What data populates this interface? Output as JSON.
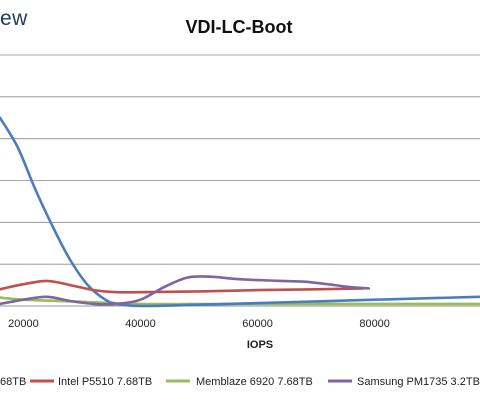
{
  "logo_fragment": "ew",
  "chart_data": {
    "type": "line",
    "title": "VDI-LC-Boot",
    "xlabel": "IOPS",
    "ylabel": "",
    "x_ticks": [
      20000,
      40000,
      60000,
      80000
    ],
    "x_tick_labels": [
      "20000",
      "40000",
      "60000",
      "80000"
    ],
    "xlim": [
      16000,
      98000
    ],
    "ylim": [
      0,
      6
    ],
    "grid": true,
    "legend_position": "bottom",
    "legend_entries": [
      {
        "label": "68TB",
        "color": "#4a7dbf"
      },
      {
        "label": "Intel P5510 7.68TB",
        "color": "#c0504d"
      },
      {
        "label": "Memblaze 6920 7.68TB",
        "color": "#9bbb59"
      },
      {
        "label": "Samsung PM1735 3.2TB",
        "color": "#8064a2"
      }
    ],
    "series": [
      {
        "name": "68TB",
        "color": "#4a7dbf",
        "x": [
          16000,
          19000,
          22000,
          25000,
          28000,
          31000,
          34000,
          36000,
          40000,
          50000,
          60000,
          70000,
          80000,
          90000,
          98000
        ],
        "y": [
          4.5,
          3.8,
          2.8,
          1.9,
          1.1,
          0.5,
          0.15,
          0.05,
          0.0,
          0.03,
          0.07,
          0.11,
          0.15,
          0.19,
          0.22
        ]
      },
      {
        "name": "Intel P5510 7.68TB",
        "color": "#c0504d",
        "x": [
          16000,
          20000,
          24000,
          28000,
          32000,
          36000,
          40000,
          50000,
          60000,
          70000,
          78000
        ],
        "y": [
          0.4,
          0.52,
          0.6,
          0.5,
          0.38,
          0.33,
          0.33,
          0.35,
          0.38,
          0.4,
          0.42
        ]
      },
      {
        "name": "Memblaze 6920 7.68TB",
        "color": "#9bbb59",
        "x": [
          16000,
          20000,
          30000,
          40000,
          60000,
          80000,
          98000
        ],
        "y": [
          0.2,
          0.15,
          0.1,
          0.05,
          0.05,
          0.05,
          0.05
        ]
      },
      {
        "name": "Samsung PM1735 3.2TB",
        "color": "#8064a2",
        "x": [
          16000,
          20000,
          24000,
          28000,
          32000,
          36000,
          40000,
          44000,
          48000,
          52000,
          56000,
          60000,
          64000,
          68000,
          72000,
          76000,
          79000
        ],
        "y": [
          0.05,
          0.15,
          0.22,
          0.12,
          0.05,
          0.05,
          0.15,
          0.45,
          0.68,
          0.7,
          0.65,
          0.62,
          0.6,
          0.58,
          0.52,
          0.45,
          0.42
        ]
      }
    ]
  }
}
